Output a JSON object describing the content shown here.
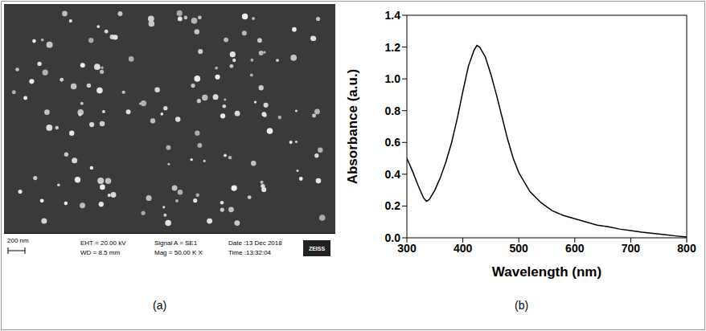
{
  "image_panel": {
    "label": "(a)",
    "scale_bar": "200 nm",
    "info": [
      [
        "EHT = 20.00 kV",
        "WD = 8.5 mm"
      ],
      [
        "Signal A = SE1",
        "Mag = 50.00 K X"
      ],
      [
        "Date :13 Dec 2018",
        "Time :13:32:04"
      ]
    ],
    "brand": "ZEISS"
  },
  "chart_data": {
    "type": "line",
    "label": "(b)",
    "x_label": "Wavelength (nm)",
    "y_label": "Absorbance (a.u.)",
    "x": [
      300,
      310,
      320,
      330,
      335,
      340,
      350,
      360,
      370,
      380,
      390,
      400,
      410,
      420,
      425,
      430,
      440,
      450,
      460,
      470,
      480,
      490,
      500,
      520,
      540,
      560,
      580,
      600,
      620,
      640,
      660,
      680,
      700,
      720,
      740,
      760,
      780,
      800
    ],
    "values": [
      0.5,
      0.42,
      0.33,
      0.25,
      0.23,
      0.24,
      0.3,
      0.38,
      0.48,
      0.6,
      0.75,
      0.92,
      1.08,
      1.18,
      1.21,
      1.2,
      1.14,
      1.03,
      0.9,
      0.76,
      0.62,
      0.5,
      0.41,
      0.29,
      0.22,
      0.17,
      0.14,
      0.12,
      0.1,
      0.08,
      0.07,
      0.055,
      0.045,
      0.035,
      0.028,
      0.02,
      0.012,
      0.005
    ],
    "color": "#000000",
    "line_style": "solid",
    "xlim": [
      300,
      800
    ],
    "xticks": [
      300,
      400,
      500,
      600,
      700,
      800
    ],
    "ylim": [
      0,
      1.4
    ],
    "yticks": [
      {
        "value": 0,
        "label": "0.0"
      },
      0.2,
      0.4,
      0.6,
      0.8,
      {
        "value": 1,
        "label": "1.0"
      },
      1.2,
      1.4
    ],
    "grid": false
  }
}
